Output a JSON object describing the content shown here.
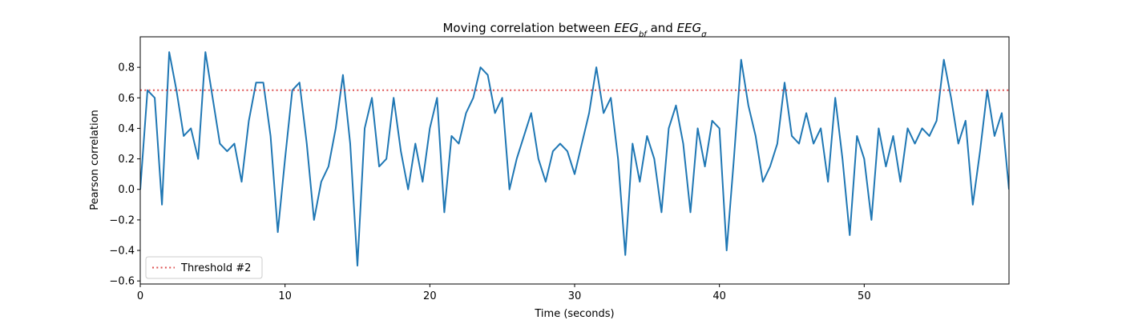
{
  "chart_data": {
    "type": "line",
    "title": [
      {
        "text": "Moving correlation between ",
        "style": "normal"
      },
      {
        "text": "EEG",
        "style": "italic"
      },
      {
        "text": "bf",
        "style": "sub"
      },
      {
        "text": " and ",
        "style": "normal"
      },
      {
        "text": "EEG",
        "style": "italic"
      },
      {
        "text": "σ",
        "style": "sub"
      }
    ],
    "x_label": "Time (seconds)",
    "y_label": "Pearson correlation",
    "xlim": [
      0,
      60
    ],
    "xticks": [
      0,
      10,
      20,
      30,
      40,
      50
    ],
    "ylim": [
      -0.62,
      1.0
    ],
    "yticks": [
      {
        "value": -0.6,
        "label": "−0.6"
      },
      {
        "value": -0.4,
        "label": "−0.4"
      },
      {
        "value": -0.2,
        "label": "−0.2"
      },
      {
        "value": 0,
        "label": "0.0"
      },
      {
        "value": 0.2,
        "label": "0.2"
      },
      {
        "value": 0.4,
        "label": "0.4"
      },
      {
        "value": 0.6,
        "label": "0.6"
      },
      {
        "value": 0.8,
        "label": "0.8"
      }
    ],
    "x": [
      0,
      0.5,
      1,
      1.5,
      2,
      2.5,
      3,
      3.5,
      4,
      4.5,
      5,
      5.5,
      6,
      6.5,
      7,
      7.5,
      8,
      8.5,
      9,
      9.5,
      10,
      10.5,
      11,
      11.5,
      12,
      12.5,
      13,
      13.5,
      14,
      14.5,
      15,
      15.5,
      16,
      16.5,
      17,
      17.5,
      18,
      18.5,
      19,
      19.5,
      20,
      20.5,
      21,
      21.5,
      22,
      22.5,
      23,
      23.5,
      24,
      24.5,
      25,
      25.5,
      26,
      26.5,
      27,
      27.5,
      28,
      28.5,
      29,
      29.5,
      30,
      30.5,
      31,
      31.5,
      32,
      32.5,
      33,
      33.5,
      34,
      34.5,
      35,
      35.5,
      36,
      36.5,
      37,
      37.5,
      38,
      38.5,
      39,
      39.5,
      40,
      40.5,
      41,
      41.5,
      42,
      42.5,
      43,
      43.5,
      44,
      44.5,
      45,
      45.5,
      46,
      46.5,
      47,
      47.5,
      48,
      48.5,
      49,
      49.5,
      50,
      50.5,
      51,
      51.5,
      52,
      52.5,
      53,
      53.5,
      54,
      54.5,
      55,
      55.5,
      56,
      56.5,
      57,
      57.5,
      58,
      58.5,
      59,
      59.5,
      60
    ],
    "series": [
      {
        "name": "Moving correlation",
        "color": "#1f77b4",
        "values": [
          0.0,
          0.65,
          0.6,
          -0.1,
          0.9,
          0.65,
          0.35,
          0.4,
          0.2,
          0.9,
          0.6,
          0.3,
          0.25,
          0.3,
          0.05,
          0.45,
          0.7,
          0.7,
          0.35,
          -0.28,
          0.2,
          0.65,
          0.7,
          0.3,
          -0.2,
          0.05,
          0.15,
          0.4,
          0.75,
          0.3,
          -0.5,
          0.4,
          0.6,
          0.15,
          0.2,
          0.6,
          0.25,
          0.0,
          0.3,
          0.05,
          0.4,
          0.6,
          -0.15,
          0.35,
          0.3,
          0.5,
          0.6,
          0.8,
          0.75,
          0.5,
          0.6,
          0.0,
          0.2,
          0.35,
          0.5,
          0.2,
          0.05,
          0.25,
          0.3,
          0.25,
          0.1,
          0.3,
          0.5,
          0.8,
          0.5,
          0.6,
          0.2,
          -0.43,
          0.3,
          0.05,
          0.35,
          0.2,
          -0.15,
          0.4,
          0.55,
          0.3,
          -0.15,
          0.4,
          0.15,
          0.45,
          0.4,
          -0.4,
          0.2,
          0.85,
          0.55,
          0.35,
          0.05,
          0.15,
          0.3,
          0.7,
          0.35,
          0.3,
          0.5,
          0.3,
          0.4,
          0.05,
          0.6,
          0.2,
          -0.3,
          0.35,
          0.2,
          -0.2,
          0.4,
          0.15,
          0.35,
          0.05,
          0.4,
          0.3,
          0.4,
          0.35,
          0.45,
          0.85,
          0.6,
          0.3,
          0.45,
          -0.1,
          0.25,
          0.65,
          0.35,
          0.5,
          0.0
        ]
      }
    ],
    "threshold": {
      "name": "Threshold #2",
      "value": 0.65,
      "color": "#d62728"
    },
    "legend": "lower left"
  }
}
